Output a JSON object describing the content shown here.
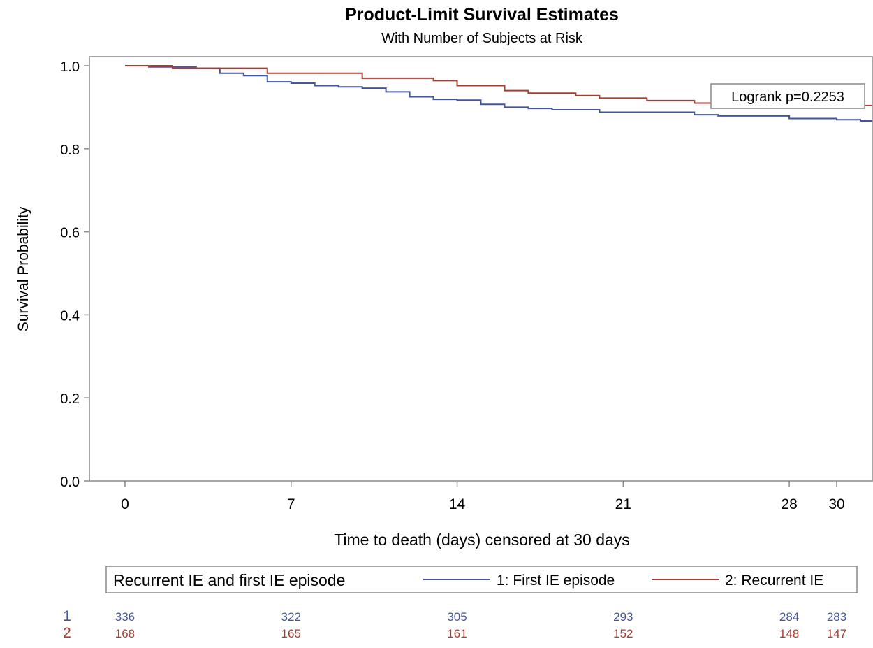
{
  "chart_data": {
    "type": "line",
    "title": "Product-Limit Survival Estimates",
    "subtitle": "With Number of Subjects at Risk",
    "xlabel": "Time to death (days) censored at 30 days",
    "ylabel": "Survival Probability",
    "xlim": [
      -1.5,
      31.5
    ],
    "ylim": [
      0.0,
      1.0
    ],
    "x_ticks": [
      0,
      7,
      14,
      21,
      28,
      30
    ],
    "y_ticks": [
      0.0,
      0.2,
      0.4,
      0.6,
      0.8,
      1.0
    ],
    "x_tick_labels": [
      "0",
      "7",
      "14",
      "21",
      "28",
      "30"
    ],
    "y_tick_labels": [
      "0.0",
      "0.2",
      "0.4",
      "0.6",
      "0.8",
      "1.0"
    ],
    "grid": false,
    "annotation": "Logrank p=0.2253",
    "legend": {
      "title": "Recurrent IE and first IE episode",
      "position": "bottom",
      "entries": [
        "1: First IE episode",
        "2: Recurrent IE"
      ]
    },
    "series": [
      {
        "name": "1: First IE episode",
        "color": "#44559e",
        "steps": [
          [
            0,
            1.0
          ],
          [
            1,
            0.997
          ],
          [
            3,
            0.994
          ],
          [
            4,
            0.982
          ],
          [
            5,
            0.976
          ],
          [
            6,
            0.961
          ],
          [
            7,
            0.958
          ],
          [
            8,
            0.952
          ],
          [
            9,
            0.949
          ],
          [
            10,
            0.946
          ],
          [
            11,
            0.937
          ],
          [
            12,
            0.925
          ],
          [
            13,
            0.919
          ],
          [
            14,
            0.917
          ],
          [
            15,
            0.907
          ],
          [
            16,
            0.9
          ],
          [
            17,
            0.897
          ],
          [
            18,
            0.894
          ],
          [
            20,
            0.888
          ],
          [
            24,
            0.882
          ],
          [
            25,
            0.879
          ],
          [
            28,
            0.873
          ],
          [
            30,
            0.87
          ],
          [
            31,
            0.867
          ],
          [
            31.5,
            0.867
          ]
        ]
      },
      {
        "name": "2: Recurrent IE",
        "color": "#a83d32",
        "steps": [
          [
            0,
            1.0
          ],
          [
            2,
            0.994
          ],
          [
            6,
            0.982
          ],
          [
            10,
            0.97
          ],
          [
            13,
            0.964
          ],
          [
            14,
            0.952
          ],
          [
            16,
            0.94
          ],
          [
            17,
            0.934
          ],
          [
            19,
            0.928
          ],
          [
            20,
            0.922
          ],
          [
            22,
            0.916
          ],
          [
            24,
            0.91
          ],
          [
            29,
            0.904
          ],
          [
            31.5,
            0.904
          ]
        ]
      }
    ],
    "at_risk": {
      "times": [
        0,
        7,
        14,
        21,
        28,
        30
      ],
      "rows": [
        {
          "label": "1",
          "color": "#44559e",
          "values": [
            "336",
            "322",
            "305",
            "293",
            "284",
            "283"
          ]
        },
        {
          "label": "2",
          "color": "#a83d32",
          "values": [
            "168",
            "165",
            "161",
            "152",
            "148",
            "147"
          ]
        }
      ]
    }
  }
}
